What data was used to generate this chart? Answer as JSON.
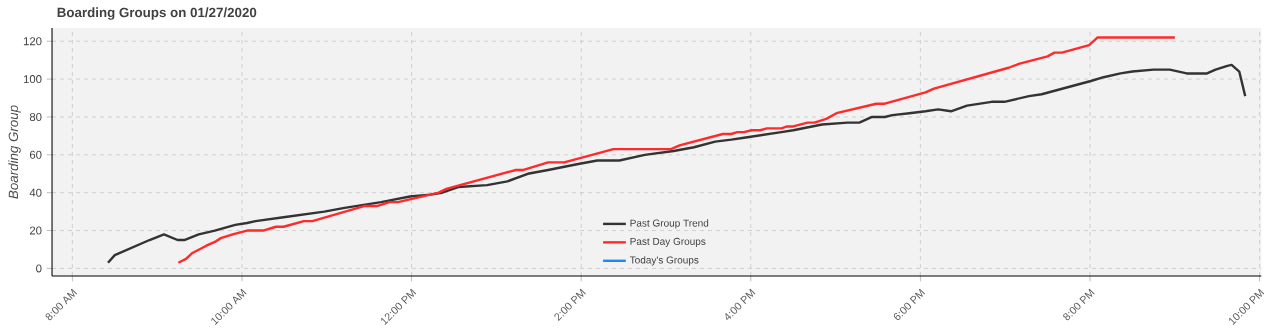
{
  "chart_data": {
    "type": "line",
    "title": "Boarding Groups on 01/27/2020",
    "ylabel": "Boarding Group",
    "xlim": [
      7.76,
      22.02
    ],
    "ylim": [
      -4,
      127
    ],
    "xticks": [
      {
        "value": 8,
        "label": "8:00 AM"
      },
      {
        "value": 10,
        "label": "10:00 AM"
      },
      {
        "value": 12,
        "label": "12:00 PM"
      },
      {
        "value": 14,
        "label": "2:00 PM"
      },
      {
        "value": 16,
        "label": "4:00 PM"
      },
      {
        "value": 18,
        "label": "6:00 PM"
      },
      {
        "value": 20,
        "label": "8:00 PM"
      },
      {
        "value": 22,
        "label": "10:00 PM"
      }
    ],
    "yticks": [
      0,
      20,
      40,
      60,
      80,
      100,
      120
    ],
    "grid": true,
    "legend": "bottom",
    "marker": "none",
    "line_style": "solid",
    "series": [
      {
        "name": "Past Group Trend",
        "color": "#333333",
        "x": [
          8.42,
          8.5,
          8.91,
          9.08,
          9.24,
          9.32,
          9.49,
          9.68,
          9.92,
          10.06,
          10.16,
          10.49,
          10.97,
          11.21,
          11.64,
          11.98,
          12.22,
          12.36,
          12.55,
          12.89,
          13.13,
          13.37,
          13.61,
          13.95,
          14.19,
          14.45,
          14.75,
          15.09,
          15.33,
          15.58,
          15.77,
          15.92,
          16.36,
          16.5,
          16.84,
          17.14,
          17.28,
          17.43,
          17.58,
          17.67,
          17.87,
          18.06,
          18.21,
          18.36,
          18.55,
          18.84,
          18.99,
          19.28,
          19.43,
          20.01,
          20.16,
          20.36,
          20.5,
          20.75,
          20.94,
          21.14,
          21.38,
          21.48,
          21.62,
          21.67,
          21.76,
          21.83
        ],
        "values": [
          3,
          7,
          15,
          18,
          15,
          15,
          18,
          20,
          23,
          24,
          25,
          27,
          30,
          32,
          35,
          38,
          39,
          40,
          43,
          44,
          46,
          50,
          52,
          55,
          57,
          57,
          60,
          62,
          64,
          67,
          68,
          69,
          72,
          73,
          76,
          77,
          77,
          80,
          80,
          81,
          82,
          83,
          84,
          83,
          86,
          88,
          88,
          91,
          92,
          99,
          101,
          103,
          104,
          105,
          105,
          103,
          103,
          105,
          107,
          107.5,
          104,
          91
        ]
      },
      {
        "name": "Past Day Groups",
        "color": "#ff2a2a",
        "x": [
          9.25,
          9.34,
          9.41,
          9.58,
          9.68,
          9.75,
          9.89,
          10.06,
          10.25,
          10.4,
          10.49,
          10.73,
          10.83,
          11.45,
          11.6,
          11.74,
          11.84,
          12.22,
          12.32,
          12.41,
          13.23,
          13.32,
          13.61,
          13.8,
          14.38,
          14.45,
          15.06,
          15.16,
          15.67,
          15.77,
          15.84,
          15.92,
          16.01,
          16.11,
          16.19,
          16.36,
          16.43,
          16.5,
          16.67,
          16.75,
          16.89,
          17.01,
          17.48,
          17.58,
          18.06,
          18.16,
          19.04,
          19.16,
          19.5,
          19.58,
          19.67,
          19.99,
          20.09,
          21.0
        ],
        "values": [
          3,
          5,
          8,
          12,
          14,
          16,
          18,
          20,
          20,
          22,
          22,
          25,
          25,
          33,
          33,
          35,
          35,
          39,
          40,
          42,
          52,
          52,
          56,
          56,
          63,
          63,
          63,
          65,
          71,
          71,
          72,
          72,
          73,
          73,
          74,
          74,
          75,
          75,
          77,
          77,
          79,
          82,
          87,
          87,
          93,
          95,
          106,
          108,
          112,
          114,
          114,
          118,
          122,
          122
        ]
      },
      {
        "name": "Today's Groups",
        "color": "#1f86ff"
      }
    ]
  }
}
